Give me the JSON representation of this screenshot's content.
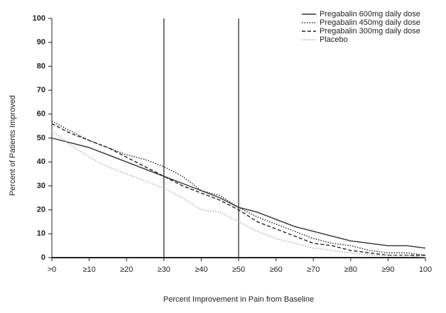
{
  "chart_data": {
    "type": "line",
    "x_label": "Percent Improvement in Pain from Baseline",
    "y_label": "Percent of Patients Improved",
    "x": [
      0,
      5,
      10,
      15,
      20,
      25,
      30,
      35,
      40,
      45,
      50,
      55,
      60,
      65,
      70,
      75,
      80,
      85,
      90,
      95,
      100
    ],
    "series": [
      {
        "name": "Pregabalin 600mg daily dose",
        "color": "#333333",
        "style": "solid",
        "values": [
          50,
          48,
          46,
          43,
          40,
          37,
          34,
          31,
          28,
          25,
          21,
          19,
          16,
          13,
          11,
          9,
          7,
          6,
          5,
          5,
          4
        ]
      },
      {
        "name": "Pregabalin 450mg daily dose",
        "color": "#222222",
        "style": "dotted",
        "values": [
          57,
          53,
          49,
          46,
          43,
          41,
          38,
          34,
          28,
          26,
          21,
          17,
          14,
          11,
          8,
          6,
          5,
          3,
          2,
          2,
          1
        ]
      },
      {
        "name": "Pregabalin 300mg daily dose",
        "color": "#222222",
        "style": "dashed",
        "values": [
          56,
          52,
          49,
          46,
          42,
          38,
          34,
          30,
          27,
          24,
          20,
          15,
          12,
          9,
          6,
          5,
          3,
          2,
          1,
          1,
          1
        ]
      },
      {
        "name": "Placebo",
        "color": "#aaaaaa",
        "style": "dotted",
        "values": [
          53,
          47,
          42,
          38,
          35,
          32,
          29,
          25,
          20,
          19,
          15,
          11,
          8,
          6,
          4,
          3,
          2,
          1,
          1,
          1,
          0
        ]
      }
    ],
    "vlines": [
      30,
      50
    ],
    "xlim": [
      0,
      100
    ],
    "ylim": [
      0,
      100
    ],
    "xticks": [
      {
        "value": 0,
        "label": ">0"
      },
      {
        "value": 10,
        "label": "≥10"
      },
      {
        "value": 20,
        "label": "≥20"
      },
      {
        "value": 30,
        "label": "≥30"
      },
      {
        "value": 40,
        "label": "≥40"
      },
      {
        "value": 50,
        "label": "≥50"
      },
      {
        "value": 60,
        "label": "≥60"
      },
      {
        "value": 70,
        "label": "≥70"
      },
      {
        "value": 80,
        "label": "≥80"
      },
      {
        "value": 90,
        "label": "≥90"
      },
      100
    ],
    "yticks": [
      0,
      10,
      20,
      30,
      40,
      50,
      60,
      70,
      80,
      90,
      100
    ],
    "legend": "top-right"
  }
}
